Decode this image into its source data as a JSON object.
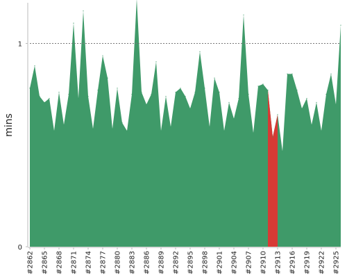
{
  "chart_data": {
    "type": "area",
    "title": "",
    "xlabel": "",
    "ylabel": "mins",
    "ylim": [
      0,
      1.2
    ],
    "yticks": [
      "0",
      "1"
    ],
    "reference_line": 1,
    "grid": false,
    "colors": {
      "fill": "#3f9a69",
      "highlight": "#d73a35",
      "reference": "#777777",
      "axis": "#bbbbbb"
    },
    "x": [
      "#2862",
      "#2863",
      "#2864",
      "#2865",
      "#2866",
      "#2867",
      "#2868",
      "#2869",
      "#2870",
      "#2871",
      "#2872",
      "#2873",
      "#2874",
      "#2875",
      "#2876",
      "#2877",
      "#2878",
      "#2879",
      "#2880",
      "#2881",
      "#2882",
      "#2883",
      "#2884",
      "#2885",
      "#2886",
      "#2887",
      "#2888",
      "#2889",
      "#2890",
      "#2891",
      "#2892",
      "#2893",
      "#2894",
      "#2895",
      "#2896",
      "#2897",
      "#2898",
      "#2899",
      "#2900",
      "#2901",
      "#2902",
      "#2903",
      "#2904",
      "#2905",
      "#2906",
      "#2907",
      "#2908",
      "#2909",
      "#2910",
      "#2911",
      "#2912",
      "#2913",
      "#2914",
      "#2915",
      "#2916",
      "#2917",
      "#2918",
      "#2919",
      "#2920",
      "#2921",
      "#2922",
      "#2923",
      "#2924",
      "#2925",
      "#2926"
    ],
    "xticks": [
      "#2862",
      "#2865",
      "#2868",
      "#2871",
      "#2874",
      "#2877",
      "#2880",
      "#2883",
      "#2886",
      "#2889",
      "#2892",
      "#2895",
      "#2898",
      "#2901",
      "#2904",
      "#2907",
      "#2910",
      "#2913",
      "#2916",
      "#2919",
      "#2922",
      "#2925"
    ],
    "values": [
      0.78,
      0.89,
      0.74,
      0.71,
      0.73,
      0.57,
      0.76,
      0.6,
      0.75,
      1.1,
      0.73,
      1.16,
      0.74,
      0.58,
      0.77,
      0.94,
      0.83,
      0.58,
      0.78,
      0.61,
      0.57,
      0.75,
      1.22,
      0.76,
      0.7,
      0.75,
      0.91,
      0.57,
      0.74,
      0.59,
      0.76,
      0.78,
      0.74,
      0.68,
      0.76,
      0.96,
      0.78,
      0.59,
      0.83,
      0.76,
      0.57,
      0.71,
      0.63,
      0.73,
      1.14,
      0.75,
      0.56,
      0.79,
      0.8,
      0.77,
      0.54,
      0.65,
      0.47,
      0.85,
      0.85,
      0.77,
      0.68,
      0.73,
      0.6,
      0.71,
      0.57,
      0.75,
      0.85,
      0.7,
      1.09
    ],
    "highlight_range": [
      "#2911",
      "#2913"
    ]
  }
}
